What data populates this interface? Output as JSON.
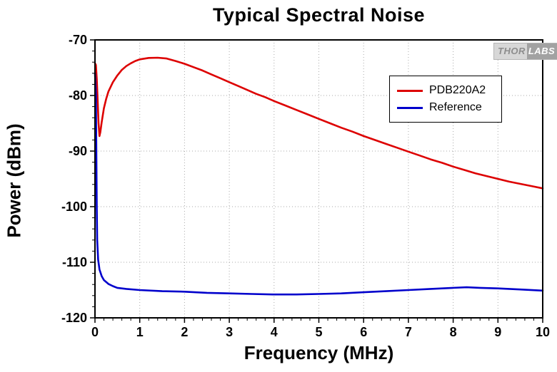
{
  "title": "Typical Spectral Noise",
  "x_label": "Frequency (MHz)",
  "y_label": "Power (dBm)",
  "logo": {
    "text_left": "THOR",
    "text_right": "LABS"
  },
  "legend": [
    {
      "label": "PDB220A2",
      "color": "#dd0000"
    },
    {
      "label": "Reference",
      "color": "#0000cc"
    }
  ],
  "chart_data": {
    "type": "line",
    "title": "Typical Spectral Noise",
    "xlabel": "Frequency (MHz)",
    "ylabel": "Power (dBm)",
    "xlim": [
      0,
      10
    ],
    "ylim": [
      -120,
      -70
    ],
    "x_ticks": [
      0,
      1,
      2,
      3,
      4,
      5,
      6,
      7,
      8,
      9,
      10
    ],
    "y_ticks": [
      -70,
      -80,
      -90,
      -100,
      -110,
      -120
    ],
    "x_minor_step": 0.2,
    "y_minor_step": 2,
    "grid": true,
    "grid_style": "dotted",
    "legend_position": "upper right",
    "series": [
      {
        "name": "PDB220A2",
        "color": "#dd0000",
        "points": [
          [
            0.0,
            -74.2
          ],
          [
            0.02,
            -74.5
          ],
          [
            0.04,
            -77.0
          ],
          [
            0.06,
            -81.0
          ],
          [
            0.08,
            -85.0
          ],
          [
            0.1,
            -87.3
          ],
          [
            0.12,
            -86.6
          ],
          [
            0.15,
            -84.8
          ],
          [
            0.2,
            -82.3
          ],
          [
            0.25,
            -80.6
          ],
          [
            0.3,
            -79.3
          ],
          [
            0.4,
            -77.6
          ],
          [
            0.5,
            -76.4
          ],
          [
            0.6,
            -75.4
          ],
          [
            0.7,
            -74.7
          ],
          [
            0.8,
            -74.2
          ],
          [
            0.9,
            -73.8
          ],
          [
            1.0,
            -73.5
          ],
          [
            1.2,
            -73.25
          ],
          [
            1.4,
            -73.2
          ],
          [
            1.6,
            -73.35
          ],
          [
            1.8,
            -73.8
          ],
          [
            2.0,
            -74.3
          ],
          [
            2.2,
            -74.9
          ],
          [
            2.4,
            -75.5
          ],
          [
            2.6,
            -76.2
          ],
          [
            2.8,
            -76.9
          ],
          [
            3.0,
            -77.6
          ],
          [
            3.2,
            -78.3
          ],
          [
            3.4,
            -79.0
          ],
          [
            3.6,
            -79.7
          ],
          [
            3.8,
            -80.3
          ],
          [
            4.0,
            -81.0
          ],
          [
            4.25,
            -81.8
          ],
          [
            4.5,
            -82.6
          ],
          [
            4.75,
            -83.4
          ],
          [
            5.0,
            -84.2
          ],
          [
            5.25,
            -85.0
          ],
          [
            5.5,
            -85.8
          ],
          [
            5.75,
            -86.5
          ],
          [
            6.0,
            -87.3
          ],
          [
            6.25,
            -88.0
          ],
          [
            6.5,
            -88.7
          ],
          [
            6.75,
            -89.4
          ],
          [
            7.0,
            -90.1
          ],
          [
            7.25,
            -90.8
          ],
          [
            7.5,
            -91.5
          ],
          [
            7.75,
            -92.1
          ],
          [
            8.0,
            -92.8
          ],
          [
            8.25,
            -93.4
          ],
          [
            8.5,
            -94.0
          ],
          [
            8.75,
            -94.5
          ],
          [
            9.0,
            -95.0
          ],
          [
            9.25,
            -95.5
          ],
          [
            9.5,
            -95.9
          ],
          [
            9.75,
            -96.3
          ],
          [
            10.0,
            -96.7
          ]
        ]
      },
      {
        "name": "Reference",
        "color": "#0000cc",
        "points": [
          [
            0.0,
            -76.0
          ],
          [
            0.02,
            -80.0
          ],
          [
            0.03,
            -90.0
          ],
          [
            0.04,
            -100.0
          ],
          [
            0.05,
            -106.0
          ],
          [
            0.07,
            -109.5
          ],
          [
            0.1,
            -111.3
          ],
          [
            0.15,
            -112.5
          ],
          [
            0.2,
            -113.2
          ],
          [
            0.3,
            -113.9
          ],
          [
            0.4,
            -114.3
          ],
          [
            0.5,
            -114.6
          ],
          [
            0.7,
            -114.8
          ],
          [
            1.0,
            -115.0
          ],
          [
            1.5,
            -115.2
          ],
          [
            2.0,
            -115.3
          ],
          [
            2.5,
            -115.5
          ],
          [
            3.0,
            -115.6
          ],
          [
            3.5,
            -115.7
          ],
          [
            4.0,
            -115.8
          ],
          [
            4.5,
            -115.8
          ],
          [
            5.0,
            -115.7
          ],
          [
            5.5,
            -115.6
          ],
          [
            6.0,
            -115.4
          ],
          [
            6.5,
            -115.2
          ],
          [
            7.0,
            -115.0
          ],
          [
            7.5,
            -114.8
          ],
          [
            8.0,
            -114.6
          ],
          [
            8.3,
            -114.5
          ],
          [
            8.6,
            -114.6
          ],
          [
            9.0,
            -114.7
          ],
          [
            9.5,
            -114.9
          ],
          [
            10.0,
            -115.1
          ]
        ]
      }
    ]
  }
}
